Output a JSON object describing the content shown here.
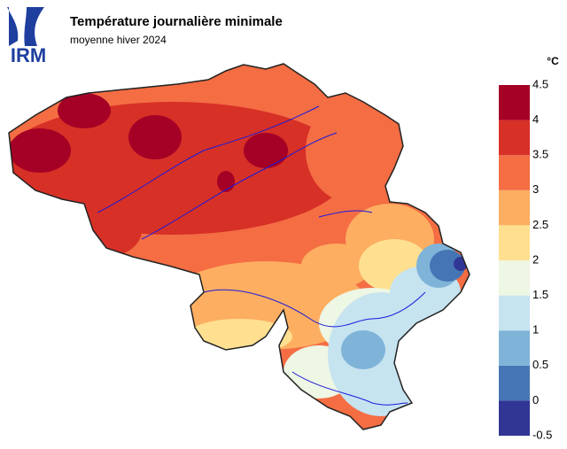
{
  "header": {
    "logo": "IRM",
    "title": "Température journalière minimale",
    "subtitle": "moyenne hiver 2024"
  },
  "legend": {
    "unit": "°C",
    "ticks": [
      -0.5,
      0,
      0.5,
      1,
      1.5,
      2,
      2.5,
      3,
      3.5,
      4,
      4.5
    ],
    "colors": [
      "#313695",
      "#4575b4",
      "#7fb4d8",
      "#c6e3f0",
      "#eef6e4",
      "#fee090",
      "#fdae61",
      "#f46d43",
      "#d73027",
      "#a50026"
    ]
  }
}
